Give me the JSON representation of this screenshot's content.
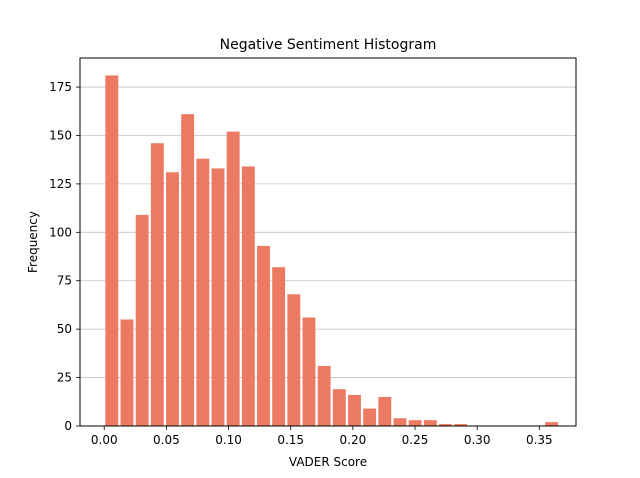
{
  "chart_data": {
    "type": "bar",
    "title": "Negative Sentiment Histogram",
    "xlabel": "VADER Score",
    "ylabel": "Frequency",
    "bar_color": "#ec7961",
    "grid_color": "#c0c0c0",
    "grid": "y",
    "xlim": [
      -0.0195,
      0.3795
    ],
    "ylim": [
      0,
      190
    ],
    "bin_width": 0.0122,
    "bar_fraction": 0.85,
    "x_ticks": [
      0.0,
      0.05,
      0.1,
      0.15,
      0.2,
      0.25,
      0.3,
      0.35
    ],
    "x_tick_labels": [
      "0.00",
      "0.05",
      "0.10",
      "0.15",
      "0.20",
      "0.25",
      "0.30",
      "0.35"
    ],
    "y_ticks": [
      0,
      25,
      50,
      75,
      100,
      125,
      150,
      175
    ],
    "y_tick_labels": [
      "0",
      "25",
      "50",
      "75",
      "100",
      "125",
      "150",
      "175"
    ],
    "bins": [
      {
        "x": 0.0061,
        "count": 181
      },
      {
        "x": 0.0183,
        "count": 55
      },
      {
        "x": 0.0305,
        "count": 109
      },
      {
        "x": 0.0427,
        "count": 146
      },
      {
        "x": 0.0549,
        "count": 131
      },
      {
        "x": 0.0671,
        "count": 161
      },
      {
        "x": 0.0793,
        "count": 138
      },
      {
        "x": 0.0915,
        "count": 133
      },
      {
        "x": 0.1037,
        "count": 152
      },
      {
        "x": 0.1159,
        "count": 134
      },
      {
        "x": 0.1281,
        "count": 93
      },
      {
        "x": 0.1403,
        "count": 82
      },
      {
        "x": 0.1525,
        "count": 68
      },
      {
        "x": 0.1647,
        "count": 56
      },
      {
        "x": 0.1769,
        "count": 31
      },
      {
        "x": 0.1891,
        "count": 19
      },
      {
        "x": 0.2013,
        "count": 16
      },
      {
        "x": 0.2135,
        "count": 9
      },
      {
        "x": 0.2257,
        "count": 15
      },
      {
        "x": 0.2379,
        "count": 4
      },
      {
        "x": 0.2501,
        "count": 3
      },
      {
        "x": 0.2623,
        "count": 3
      },
      {
        "x": 0.2745,
        "count": 1
      },
      {
        "x": 0.2867,
        "count": 1
      },
      {
        "x": 0.2989,
        "count": 0
      },
      {
        "x": 0.3111,
        "count": 0
      },
      {
        "x": 0.3233,
        "count": 0
      },
      {
        "x": 0.3355,
        "count": 0
      },
      {
        "x": 0.3477,
        "count": 0
      },
      {
        "x": 0.3599,
        "count": 2
      }
    ]
  }
}
